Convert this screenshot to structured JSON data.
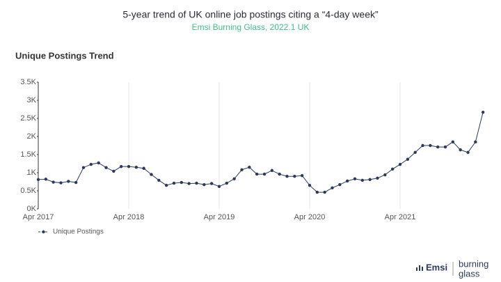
{
  "chart_data": {
    "type": "line",
    "title": "5-year trend of UK online job postings citing a “4-day week”",
    "subtitle": "Emsi Burning Glass, 2022.1 UK",
    "panel_title": "Unique Postings Trend",
    "brand": [
      "Emsi",
      "burning",
      "glass"
    ],
    "categories": [
      "Apr 2017",
      null,
      null,
      null,
      null,
      null,
      null,
      null,
      null,
      null,
      null,
      null,
      "Apr 2018",
      null,
      null,
      null,
      null,
      null,
      null,
      null,
      null,
      null,
      null,
      null,
      "Apr 2019",
      null,
      null,
      null,
      null,
      null,
      null,
      null,
      null,
      null,
      null,
      null,
      "Apr 2020",
      null,
      null,
      null,
      null,
      null,
      null,
      null,
      null,
      null,
      null,
      null,
      "Apr 2021",
      null,
      null,
      null,
      null,
      null,
      null,
      null,
      null,
      null,
      null,
      null
    ],
    "series": [
      {
        "name": "Unique Postings",
        "color": "#2b3a5c",
        "values": [
          810,
          820,
          740,
          720,
          760,
          730,
          1140,
          1230,
          1270,
          1140,
          1040,
          1170,
          1170,
          1150,
          1120,
          950,
          790,
          650,
          710,
          730,
          700,
          710,
          670,
          700,
          620,
          710,
          830,
          1080,
          1150,
          960,
          960,
          1060,
          960,
          900,
          900,
          920,
          650,
          460,
          460,
          580,
          670,
          770,
          830,
          790,
          810,
          850,
          940,
          1100,
          1230,
          1370,
          1560,
          1750,
          1750,
          1710,
          1710,
          1850,
          1630,
          1560,
          1850,
          2670
        ]
      }
    ],
    "ylim": [
      0,
      3500
    ],
    "yticks": [
      {
        "value": 0,
        "label": "0K"
      },
      {
        "value": 500,
        "label": "0.5K"
      },
      {
        "value": 1000,
        "label": "1K"
      },
      {
        "value": 1500,
        "label": "1.5K"
      },
      {
        "value": 2000,
        "label": "2K"
      },
      {
        "value": 2500,
        "label": "2.5K"
      },
      {
        "value": 3000,
        "label": "3K"
      },
      {
        "value": 3500,
        "label": "3.5K"
      }
    ],
    "grid": true
  }
}
